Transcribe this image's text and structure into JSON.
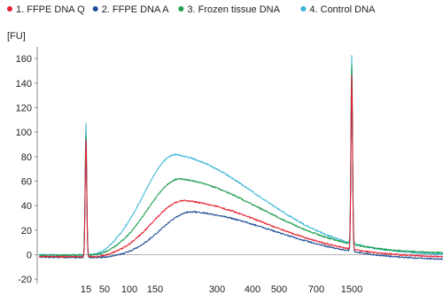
{
  "chart_data": {
    "type": "line",
    "title": "",
    "ylabel": "[FU]",
    "xlabel": "",
    "ylim": [
      -22,
      168
    ],
    "y_ticks": [
      -20,
      0,
      20,
      40,
      60,
      80,
      100,
      120,
      140,
      160
    ],
    "x_ticks": [
      "15",
      "50",
      "100",
      "150",
      "300",
      "400",
      "500",
      "700",
      "1500"
    ],
    "x_tick_positions": [
      15,
      50,
      100,
      150,
      300,
      400,
      500,
      700,
      1500
    ],
    "grid": false,
    "legend_position": "top",
    "series": [
      {
        "name": "1. FFPE DNA Q",
        "color": "#e8212f",
        "baseline": -1.5,
        "peak_size": 220,
        "peak_height": 46,
        "end_level": -2.5,
        "lower_marker": 95,
        "upper_marker": 142
      },
      {
        "name": "2. FFPE DNA A",
        "color": "#1f4e96",
        "baseline": -2.0,
        "peak_size": 240,
        "peak_height": 38,
        "end_level": -4.5,
        "lower_marker": 93,
        "upper_marker": 138
      },
      {
        "name": "3. Frozen tissue DNA",
        "color": "#1f9e4f",
        "baseline": -0.5,
        "peak_size": 210,
        "peak_height": 62,
        "end_level": 0.5,
        "lower_marker": 98,
        "upper_marker": 146
      },
      {
        "name": "4. Control DNA",
        "color": "#39b5d6",
        "baseline": 0.0,
        "peak_size": 200,
        "peak_height": 82,
        "end_level": -1.0,
        "lower_marker": 108,
        "upper_marker": 153
      }
    ]
  }
}
